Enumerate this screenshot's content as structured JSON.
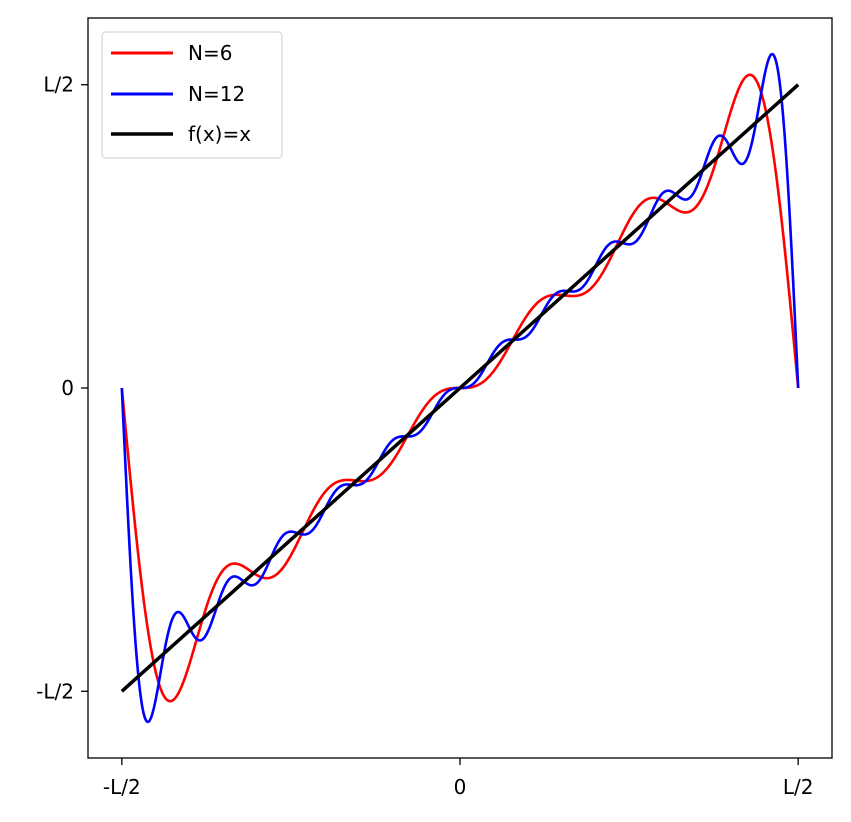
{
  "chart_data": {
    "type": "line",
    "title": "",
    "xlabel": "",
    "ylabel": "",
    "xlim": [
      -0.55,
      0.55
    ],
    "ylim": [
      -0.61,
      0.61
    ],
    "x_ticks": [
      {
        "value": -0.5,
        "label": "-L/2"
      },
      {
        "value": 0,
        "label": "0"
      },
      {
        "value": 0.5,
        "label": "L/2"
      }
    ],
    "y_ticks": [
      {
        "value": -0.5,
        "label": "-L/2"
      },
      {
        "value": 0,
        "label": "0"
      },
      {
        "value": 0.5,
        "label": "L/2"
      }
    ],
    "grid": false,
    "legend_position": "top-left",
    "series": [
      {
        "name": "N=6",
        "color": "#ff0000",
        "kind": "fourier_sawtooth",
        "n_terms": 6
      },
      {
        "name": "N=12",
        "color": "#0000ff",
        "kind": "fourier_sawtooth",
        "n_terms": 12
      },
      {
        "name": "f(x)=x",
        "color": "#000000",
        "kind": "identity",
        "x": [
          -0.5,
          0.5
        ],
        "y": [
          -0.5,
          0.5
        ]
      }
    ]
  }
}
